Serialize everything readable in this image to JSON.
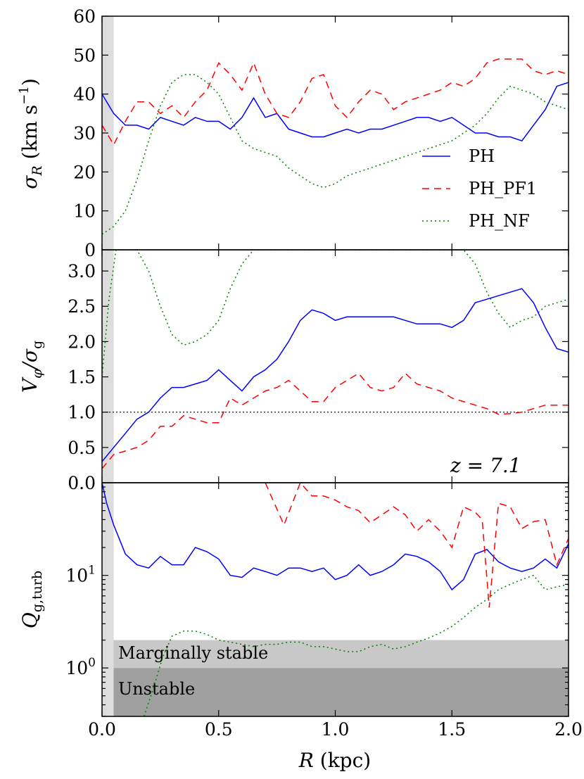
{
  "chart_data": [
    {
      "type": "line",
      "panel": "sigma",
      "ylabel": "σR (km s−1)",
      "ylabel_parts": {
        "sym": "σ",
        "sub": "R",
        "unit": " (km s",
        "sup": "−1",
        "close": ")"
      },
      "ylim": [
        0,
        60
      ],
      "yticks": [
        0,
        10,
        20,
        30,
        40,
        50,
        60
      ],
      "series": [
        {
          "name": "PH",
          "color": "#0000ff",
          "dash": "solid",
          "x": [
            0.0,
            0.05,
            0.1,
            0.15,
            0.2,
            0.25,
            0.3,
            0.35,
            0.4,
            0.45,
            0.5,
            0.55,
            0.6,
            0.65,
            0.7,
            0.75,
            0.8,
            0.85,
            0.9,
            0.95,
            1.0,
            1.05,
            1.1,
            1.15,
            1.2,
            1.25,
            1.3,
            1.35,
            1.4,
            1.45,
            1.5,
            1.55,
            1.6,
            1.65,
            1.7,
            1.75,
            1.8,
            1.85,
            1.9,
            1.95,
            2.0
          ],
          "y": [
            40,
            35,
            32,
            32,
            31,
            34,
            33,
            32,
            34,
            33,
            33,
            31,
            34,
            39,
            34,
            35,
            31,
            30,
            29,
            29,
            30,
            31,
            30,
            31,
            31,
            32,
            33,
            34,
            34,
            33,
            34,
            32,
            30,
            30,
            29,
            29,
            28,
            32,
            36,
            42,
            43
          ]
        },
        {
          "name": "PH_PF1",
          "color": "#ff0000",
          "dash": "dashed",
          "x": [
            0.0,
            0.05,
            0.1,
            0.15,
            0.2,
            0.25,
            0.3,
            0.35,
            0.4,
            0.45,
            0.5,
            0.55,
            0.6,
            0.65,
            0.7,
            0.75,
            0.8,
            0.85,
            0.9,
            0.95,
            1.0,
            1.05,
            1.1,
            1.15,
            1.2,
            1.25,
            1.3,
            1.35,
            1.4,
            1.45,
            1.5,
            1.55,
            1.6,
            1.65,
            1.7,
            1.75,
            1.8,
            1.85,
            1.9,
            1.95,
            2.0
          ],
          "y": [
            32,
            27,
            33,
            38,
            38,
            35,
            37,
            34,
            38,
            41,
            48,
            45,
            41,
            48,
            40,
            35,
            34,
            38,
            44,
            45,
            37,
            34,
            38,
            41,
            40,
            36,
            38,
            39,
            40,
            41,
            43,
            42,
            44,
            48,
            49,
            49,
            49,
            46,
            45,
            46,
            45
          ]
        },
        {
          "name": "PH_NF",
          "color": "#008000",
          "dash": "dotted",
          "x": [
            0.0,
            0.05,
            0.1,
            0.15,
            0.2,
            0.25,
            0.3,
            0.35,
            0.4,
            0.45,
            0.5,
            0.55,
            0.6,
            0.65,
            0.7,
            0.75,
            0.8,
            0.85,
            0.9,
            0.95,
            1.0,
            1.05,
            1.1,
            1.15,
            1.2,
            1.25,
            1.3,
            1.35,
            1.4,
            1.45,
            1.5,
            1.55,
            1.6,
            1.65,
            1.7,
            1.75,
            1.8,
            1.85,
            1.9,
            1.95,
            2.0
          ],
          "y": [
            4,
            6,
            10,
            18,
            28,
            37,
            43,
            45,
            45,
            43,
            40,
            34,
            28,
            26,
            25,
            24,
            21,
            19,
            17,
            16,
            17,
            19,
            20,
            21,
            22,
            23,
            24,
            25,
            26,
            27,
            28,
            30,
            32,
            35,
            39,
            42,
            41,
            40,
            38,
            37,
            36
          ]
        }
      ],
      "legend": {
        "placement": "center-right",
        "entries": [
          "PH",
          "PH_PF1",
          "PH_NF"
        ]
      }
    },
    {
      "type": "line",
      "panel": "vsigma",
      "ylabel": "Vφ/σg",
      "ylabel_parts": {
        "sym": "V",
        "sub": "φ",
        "mid": "/σ",
        "sub2": "g"
      },
      "ylim": [
        0,
        3.3
      ],
      "yticks": [
        0.0,
        0.5,
        1.0,
        1.5,
        2.0,
        2.5,
        3.0
      ],
      "reference_line": 1.0,
      "annotation": "z = 7.1",
      "series": [
        {
          "name": "PH",
          "color": "#0000ff",
          "dash": "solid",
          "x": [
            0.0,
            0.05,
            0.1,
            0.15,
            0.2,
            0.25,
            0.3,
            0.35,
            0.4,
            0.45,
            0.5,
            0.55,
            0.6,
            0.65,
            0.7,
            0.75,
            0.8,
            0.85,
            0.9,
            0.95,
            1.0,
            1.05,
            1.1,
            1.15,
            1.2,
            1.25,
            1.3,
            1.35,
            1.4,
            1.45,
            1.5,
            1.55,
            1.6,
            1.65,
            1.7,
            1.75,
            1.8,
            1.85,
            1.9,
            1.95,
            2.0
          ],
          "y": [
            0.3,
            0.5,
            0.7,
            0.9,
            1.0,
            1.2,
            1.35,
            1.35,
            1.4,
            1.45,
            1.6,
            1.45,
            1.3,
            1.5,
            1.6,
            1.75,
            2.0,
            2.3,
            2.45,
            2.4,
            2.3,
            2.35,
            2.35,
            2.35,
            2.35,
            2.35,
            2.3,
            2.25,
            2.25,
            2.25,
            2.2,
            2.3,
            2.55,
            2.6,
            2.65,
            2.7,
            2.75,
            2.55,
            2.2,
            1.9,
            1.85
          ]
        },
        {
          "name": "PH_PF1",
          "color": "#ff0000",
          "dash": "dashed",
          "x": [
            0.0,
            0.05,
            0.1,
            0.15,
            0.2,
            0.25,
            0.3,
            0.35,
            0.4,
            0.45,
            0.5,
            0.55,
            0.6,
            0.65,
            0.7,
            0.75,
            0.8,
            0.85,
            0.9,
            0.95,
            1.0,
            1.05,
            1.1,
            1.15,
            1.2,
            1.25,
            1.3,
            1.35,
            1.4,
            1.45,
            1.5,
            1.55,
            1.6,
            1.65,
            1.7,
            1.75,
            1.8,
            1.85,
            1.9,
            1.95,
            2.0
          ],
          "y": [
            0.2,
            0.4,
            0.45,
            0.5,
            0.6,
            0.8,
            0.8,
            0.95,
            0.9,
            0.85,
            0.85,
            1.2,
            1.1,
            1.2,
            1.3,
            1.35,
            1.45,
            1.3,
            1.15,
            1.15,
            1.35,
            1.45,
            1.55,
            1.35,
            1.3,
            1.35,
            1.55,
            1.4,
            1.35,
            1.3,
            1.2,
            1.15,
            1.1,
            1.05,
            0.97,
            0.98,
            1.0,
            1.05,
            1.1,
            1.1,
            1.1
          ]
        },
        {
          "name": "PH_NF",
          "color": "#008000",
          "dash": "dotted",
          "x": [
            0.0,
            0.03,
            0.06,
            0.1,
            0.15,
            0.2,
            0.25,
            0.3,
            0.35,
            0.4,
            0.45,
            0.5,
            0.55,
            0.6,
            0.65,
            0.7,
            1.55,
            1.6,
            1.65,
            1.7,
            1.75,
            1.8,
            1.85,
            1.9,
            1.95,
            2.0
          ],
          "y": [
            1.5,
            2.6,
            3.3,
            3.3,
            3.3,
            3.0,
            2.5,
            2.1,
            1.95,
            2.0,
            2.1,
            2.3,
            2.75,
            3.1,
            3.3,
            3.3,
            3.3,
            3.1,
            2.7,
            2.4,
            2.2,
            2.3,
            2.35,
            2.5,
            2.55,
            2.6
          ]
        }
      ]
    },
    {
      "type": "line",
      "panel": "q",
      "yscale": "log",
      "ylabel": "Qg,turb",
      "ylabel_parts": {
        "sym": "Q",
        "sub": "g,turb"
      },
      "ylim": [
        0.3,
        100
      ],
      "yticks": [
        {
          "value": 1,
          "base": "10",
          "exp": "0"
        },
        {
          "value": 10,
          "base": "10",
          "exp": "1"
        }
      ],
      "bands": [
        {
          "label": "Marginally stable",
          "range": [
            1,
            2
          ],
          "color": "#c8c8c8"
        },
        {
          "label": "Unstable",
          "range": [
            0.3,
            1
          ],
          "color": "#a0a0a0"
        }
      ],
      "series": [
        {
          "name": "PH",
          "color": "#0000ff",
          "dash": "solid",
          "x": [
            0.0,
            0.02,
            0.05,
            0.1,
            0.15,
            0.2,
            0.25,
            0.3,
            0.35,
            0.4,
            0.45,
            0.5,
            0.55,
            0.6,
            0.65,
            0.7,
            0.75,
            0.8,
            0.85,
            0.9,
            0.95,
            1.0,
            1.05,
            1.1,
            1.15,
            1.2,
            1.25,
            1.3,
            1.35,
            1.4,
            1.45,
            1.5,
            1.55,
            1.6,
            1.65,
            1.7,
            1.75,
            1.8,
            1.85,
            1.9,
            1.95,
            2.0
          ],
          "y": [
            100,
            60,
            35,
            17,
            13,
            12,
            16,
            13,
            13,
            20,
            18,
            15,
            10,
            9.5,
            12,
            11,
            10,
            12,
            12,
            11,
            12,
            9,
            10,
            13,
            10,
            11,
            13,
            17,
            16,
            14,
            11,
            7,
            9,
            17,
            19,
            14,
            12,
            11,
            12,
            15,
            12,
            22
          ]
        },
        {
          "name": "PH_PF1",
          "color": "#ff0000",
          "dash": "dashed",
          "x": [
            0.7,
            0.78,
            0.85,
            0.9,
            0.95,
            1.0,
            1.05,
            1.1,
            1.15,
            1.2,
            1.25,
            1.3,
            1.35,
            1.4,
            1.45,
            1.5,
            1.55,
            1.6,
            1.63,
            1.66,
            1.7,
            1.75,
            1.8,
            1.85,
            1.9,
            1.95,
            2.0
          ],
          "y": [
            100,
            35,
            100,
            72,
            72,
            65,
            55,
            50,
            37,
            45,
            55,
            45,
            30,
            40,
            30,
            20,
            55,
            48,
            40,
            4.5,
            60,
            55,
            32,
            38,
            40,
            13,
            25
          ]
        },
        {
          "name": "PH_NF",
          "color": "#008000",
          "dash": "dotted",
          "x": [
            0.18,
            0.22,
            0.26,
            0.3,
            0.35,
            0.4,
            0.45,
            0.5,
            0.55,
            0.6,
            0.65,
            0.7,
            0.75,
            0.8,
            0.85,
            0.9,
            0.95,
            1.0,
            1.05,
            1.1,
            1.15,
            1.2,
            1.25,
            1.3,
            1.35,
            1.4,
            1.45,
            1.5,
            1.55,
            1.6,
            1.65,
            1.7,
            1.75,
            1.8,
            1.85,
            1.9,
            1.95,
            2.0
          ],
          "y": [
            0.3,
            0.6,
            1.3,
            2.2,
            2.5,
            2.5,
            2.3,
            2.0,
            1.9,
            1.8,
            1.7,
            1.8,
            1.8,
            1.9,
            1.9,
            1.7,
            1.7,
            1.6,
            1.5,
            1.5,
            1.7,
            1.8,
            1.6,
            1.7,
            1.9,
            2.1,
            2.4,
            2.8,
            3.5,
            4.5,
            5.5,
            7,
            8,
            9,
            10,
            7,
            7.5,
            8
          ]
        }
      ]
    }
  ],
  "shared_axis": {
    "xlabel": "R (kpc)",
    "xlabel_parts": {
      "sym": "R",
      "unit": " (kpc)"
    },
    "xlim": [
      0,
      2.0
    ],
    "xticks": [
      "0.0",
      "0.5",
      "1.0",
      "1.5",
      "2.0"
    ],
    "excluded_region_xmax": 0.05
  }
}
